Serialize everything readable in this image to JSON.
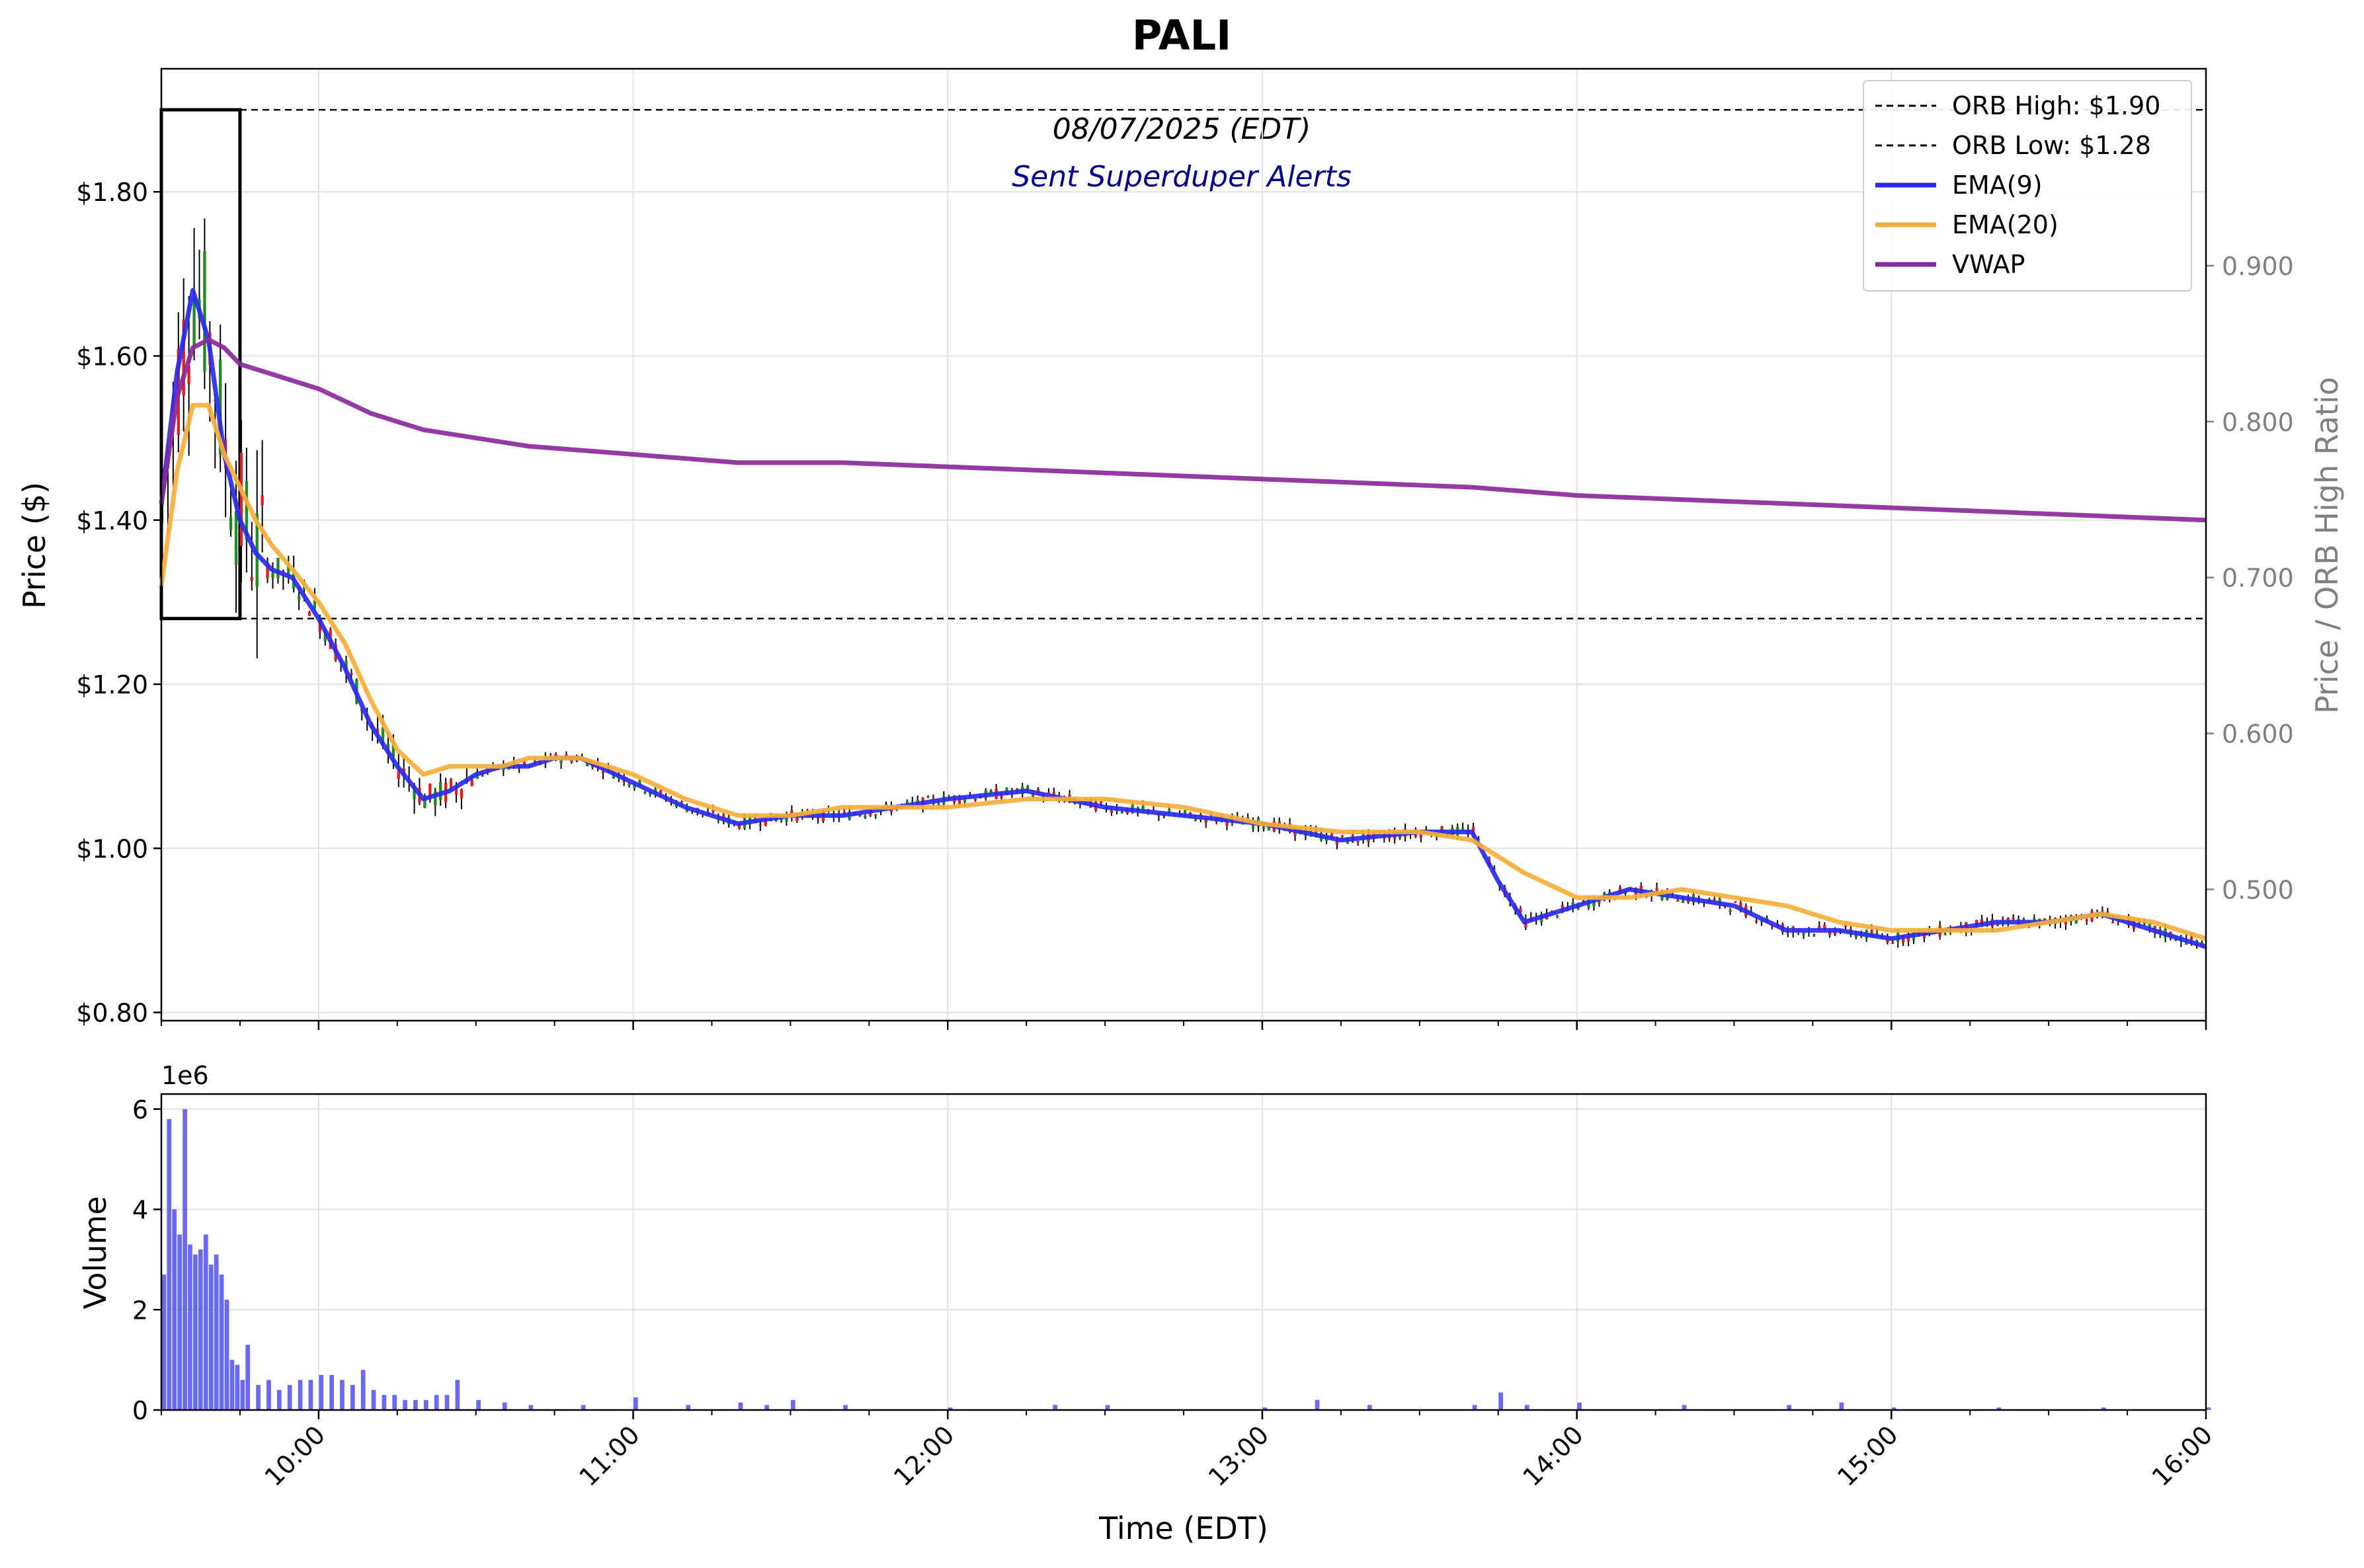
{
  "chart_data": [
    {
      "type": "candlestick-line",
      "title": "PALI",
      "date_label": "08/07/2025 (EDT)",
      "subtitle": "Sent Superduper Alerts",
      "ylabel": "Price ($)",
      "ylabel_right": "Price / ORB High Ratio",
      "xlabel": "Time (EDT)",
      "ylim": [
        0.79,
        1.95
      ],
      "y_ticks": [
        0.8,
        1.0,
        1.2,
        1.4,
        1.6,
        1.8
      ],
      "y_tick_labels": [
        "$0.80",
        "$1.00",
        "$1.20",
        "$1.40",
        "$1.60",
        "$1.80"
      ],
      "right_ticks": [
        0.5,
        0.6,
        0.7,
        0.8,
        0.9
      ],
      "right_tick_labels": [
        "0.500",
        "0.600",
        "0.700",
        "0.800",
        "0.900"
      ],
      "x_range": [
        "09:30",
        "16:00"
      ],
      "x_tick_labels": [
        "10:00",
        "11:00",
        "12:00",
        "13:00",
        "14:00",
        "15:00",
        "16:00"
      ],
      "grid": true,
      "legend_position": "top-right",
      "orb": {
        "high": 1.9,
        "low": 1.28,
        "start": "09:30",
        "end": "09:45"
      },
      "legend": [
        {
          "label": "ORB High: $1.90",
          "style": "dashed",
          "color": "#000000"
        },
        {
          "label": "ORB Low: $1.28",
          "style": "dashed",
          "color": "#000000"
        },
        {
          "label": "EMA(9)",
          "style": "solid",
          "color": "#2a2aee"
        },
        {
          "label": "EMA(20)",
          "style": "solid",
          "color": "#f5ae3a"
        },
        {
          "label": "VWAP",
          "style": "solid",
          "color": "#8a2a9a"
        }
      ],
      "series": [
        {
          "name": "EMA(9)",
          "color": "#2a2aee",
          "x": [
            "09:30",
            "09:33",
            "09:36",
            "09:39",
            "09:42",
            "09:45",
            "09:48",
            "09:51",
            "09:55",
            "10:00",
            "10:05",
            "10:10",
            "10:15",
            "10:20",
            "10:25",
            "10:30",
            "10:35",
            "10:40",
            "10:45",
            "10:50",
            "11:00",
            "11:10",
            "11:20",
            "11:30",
            "11:40",
            "11:50",
            "12:00",
            "12:15",
            "12:30",
            "12:45",
            "13:00",
            "13:15",
            "13:30",
            "13:40",
            "13:45",
            "13:50",
            "14:00",
            "14:10",
            "14:20",
            "14:30",
            "14:40",
            "14:50",
            "15:00",
            "15:10",
            "15:20",
            "15:30",
            "15:40",
            "15:50",
            "16:00"
          ],
          "y": [
            1.42,
            1.58,
            1.68,
            1.62,
            1.48,
            1.4,
            1.36,
            1.34,
            1.33,
            1.28,
            1.22,
            1.15,
            1.1,
            1.06,
            1.07,
            1.09,
            1.1,
            1.1,
            1.11,
            1.11,
            1.08,
            1.05,
            1.03,
            1.04,
            1.04,
            1.05,
            1.06,
            1.07,
            1.05,
            1.04,
            1.03,
            1.01,
            1.02,
            1.02,
            0.96,
            0.91,
            0.93,
            0.95,
            0.94,
            0.93,
            0.9,
            0.9,
            0.89,
            0.9,
            0.91,
            0.91,
            0.92,
            0.9,
            0.88
          ]
        },
        {
          "name": "EMA(20)",
          "color": "#f5ae3a",
          "x": [
            "09:30",
            "09:33",
            "09:36",
            "09:39",
            "09:42",
            "09:45",
            "09:48",
            "09:51",
            "09:55",
            "10:00",
            "10:05",
            "10:10",
            "10:15",
            "10:20",
            "10:25",
            "10:30",
            "10:35",
            "10:40",
            "10:50",
            "11:00",
            "11:10",
            "11:20",
            "11:30",
            "11:40",
            "11:50",
            "12:00",
            "12:15",
            "12:30",
            "12:45",
            "13:00",
            "13:15",
            "13:30",
            "13:40",
            "13:50",
            "14:00",
            "14:10",
            "14:20",
            "14:30",
            "14:40",
            "14:50",
            "15:00",
            "15:10",
            "15:20",
            "15:30",
            "15:40",
            "15:50",
            "16:00"
          ],
          "y": [
            1.32,
            1.46,
            1.54,
            1.54,
            1.48,
            1.44,
            1.4,
            1.37,
            1.34,
            1.3,
            1.25,
            1.18,
            1.12,
            1.09,
            1.1,
            1.1,
            1.1,
            1.11,
            1.11,
            1.09,
            1.06,
            1.04,
            1.04,
            1.05,
            1.05,
            1.05,
            1.06,
            1.06,
            1.05,
            1.03,
            1.02,
            1.02,
            1.01,
            0.97,
            0.94,
            0.94,
            0.95,
            0.94,
            0.93,
            0.91,
            0.9,
            0.9,
            0.9,
            0.91,
            0.92,
            0.91,
            0.89
          ]
        },
        {
          "name": "VWAP",
          "color": "#8a2a9a",
          "x": [
            "09:30",
            "09:33",
            "09:36",
            "09:39",
            "09:42",
            "09:45",
            "09:50",
            "10:00",
            "10:10",
            "10:20",
            "10:30",
            "10:40",
            "11:00",
            "11:20",
            "11:40",
            "12:00",
            "12:20",
            "12:40",
            "13:00",
            "13:20",
            "13:40",
            "13:50",
            "14:00",
            "14:20",
            "14:40",
            "15:00",
            "15:20",
            "15:40",
            "16:00"
          ],
          "y": [
            1.42,
            1.55,
            1.61,
            1.62,
            1.61,
            1.59,
            1.58,
            1.56,
            1.53,
            1.51,
            1.5,
            1.49,
            1.48,
            1.47,
            1.47,
            1.465,
            1.46,
            1.455,
            1.45,
            1.445,
            1.44,
            1.435,
            1.43,
            1.425,
            1.42,
            1.415,
            1.41,
            1.405,
            1.4
          ]
        }
      ]
    },
    {
      "type": "bar",
      "ylabel": "Volume",
      "scale_label": "1e6",
      "ylim": [
        0,
        6.3
      ],
      "y_ticks": [
        0,
        2,
        4,
        6
      ],
      "y_tick_labels": [
        "0",
        "2",
        "4",
        "6"
      ],
      "bar_color": "#4f4ff0",
      "categories": [
        "09:30",
        "09:31",
        "09:32",
        "09:33",
        "09:34",
        "09:35",
        "09:36",
        "09:37",
        "09:38",
        "09:39",
        "09:40",
        "09:41",
        "09:42",
        "09:43",
        "09:44",
        "09:45",
        "09:46",
        "09:48",
        "09:50",
        "09:52",
        "09:54",
        "09:56",
        "09:58",
        "10:00",
        "10:02",
        "10:04",
        "10:06",
        "10:08",
        "10:10",
        "10:12",
        "10:14",
        "10:16",
        "10:18",
        "10:20",
        "10:22",
        "10:24",
        "10:26",
        "10:30",
        "10:35",
        "10:40",
        "10:50",
        "11:00",
        "11:10",
        "11:20",
        "11:25",
        "11:30",
        "11:40",
        "12:00",
        "12:20",
        "12:30",
        "13:00",
        "13:10",
        "13:20",
        "13:40",
        "13:45",
        "13:50",
        "14:00",
        "14:20",
        "14:40",
        "14:50",
        "15:00",
        "15:20",
        "15:40",
        "16:00"
      ],
      "values": [
        2.7,
        5.8,
        4.0,
        3.5,
        6.0,
        3.3,
        3.1,
        3.2,
        3.5,
        2.9,
        3.1,
        2.7,
        2.2,
        1.0,
        0.9,
        0.6,
        1.3,
        0.5,
        0.6,
        0.4,
        0.5,
        0.6,
        0.6,
        0.7,
        0.7,
        0.6,
        0.5,
        0.8,
        0.4,
        0.3,
        0.3,
        0.2,
        0.2,
        0.2,
        0.3,
        0.3,
        0.6,
        0.2,
        0.15,
        0.1,
        0.1,
        0.25,
        0.1,
        0.15,
        0.1,
        0.2,
        0.1,
        0.05,
        0.1,
        0.1,
        0.05,
        0.2,
        0.1,
        0.1,
        0.35,
        0.1,
        0.15,
        0.1,
        0.1,
        0.15,
        0.05,
        0.05,
        0.05,
        0.05
      ]
    }
  ]
}
